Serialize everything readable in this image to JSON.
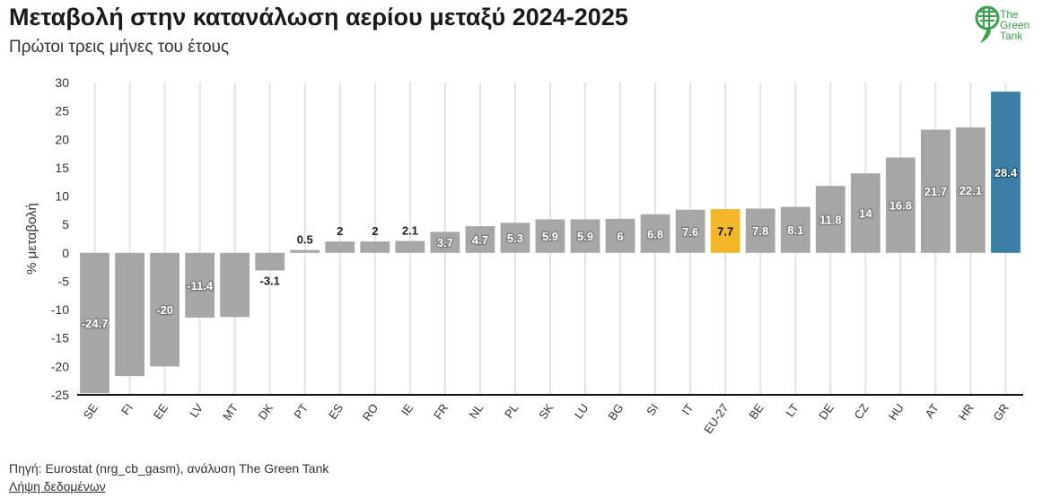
{
  "header": {
    "title": "Μεταβολή στην κατανάλωση αερίου μεταξύ 2024-2025",
    "subtitle": "Πρώτοι τρεις μήνες του έτους"
  },
  "logo": {
    "line1": "The",
    "line2": "Green",
    "line3": "Tank",
    "color": "#3aa14a",
    "icon": "globe-leaf-icon"
  },
  "footer": {
    "source": "Πηγή: Eurostat (nrg_cb_gasm), ανάλυση The Green Tank",
    "download_link": "Λήψη δεδομένων"
  },
  "chart_data": {
    "type": "bar",
    "title": "Μεταβολή στην κατανάλωση αερίου μεταξύ 2024-2025",
    "subtitle": "Πρώτοι τρεις μήνες του έτους",
    "ylabel": "% μεταβολή",
    "xlabel": "",
    "ylim": [
      -25,
      30
    ],
    "yticks": [
      30,
      25,
      20,
      15,
      10,
      5,
      0,
      -5,
      -10,
      -15,
      -20,
      -25
    ],
    "grid": "vertical",
    "categories": [
      "SE",
      "FI",
      "EE",
      "LV",
      "MT",
      "DK",
      "PT",
      "ES",
      "RO",
      "IE",
      "FR",
      "NL",
      "PL",
      "SK",
      "LU",
      "BG",
      "SI",
      "IT",
      "EU-27",
      "BE",
      "LT",
      "DE",
      "CZ",
      "HU",
      "AT",
      "HR",
      "GR"
    ],
    "values": [
      -24.7,
      -21.7,
      -20,
      -11.4,
      -11.3,
      -3.1,
      0.5,
      2,
      2,
      2.1,
      3.7,
      4.7,
      5.3,
      5.9,
      5.9,
      6,
      6.8,
      7.6,
      7.7,
      7.8,
      8.1,
      11.8,
      14,
      16.8,
      21.7,
      22.1,
      28.4
    ],
    "labels": [
      "-24.7",
      "",
      "-20",
      "-11.4",
      "",
      "-3.1",
      "0.5",
      "2",
      "2",
      "2.1",
      "3.7",
      "4.7",
      "5.3",
      "5.9",
      "5.9",
      "6",
      "6.8",
      "7.6",
      "7.7",
      "7.8",
      "8.1",
      "11.8",
      "14",
      "16.8",
      "21.7",
      "22.1",
      "28.4"
    ],
    "colors": {
      "default": "#a6a6a6",
      "EU-27": "#f2b82a",
      "GR": "#3d7ea6"
    }
  }
}
